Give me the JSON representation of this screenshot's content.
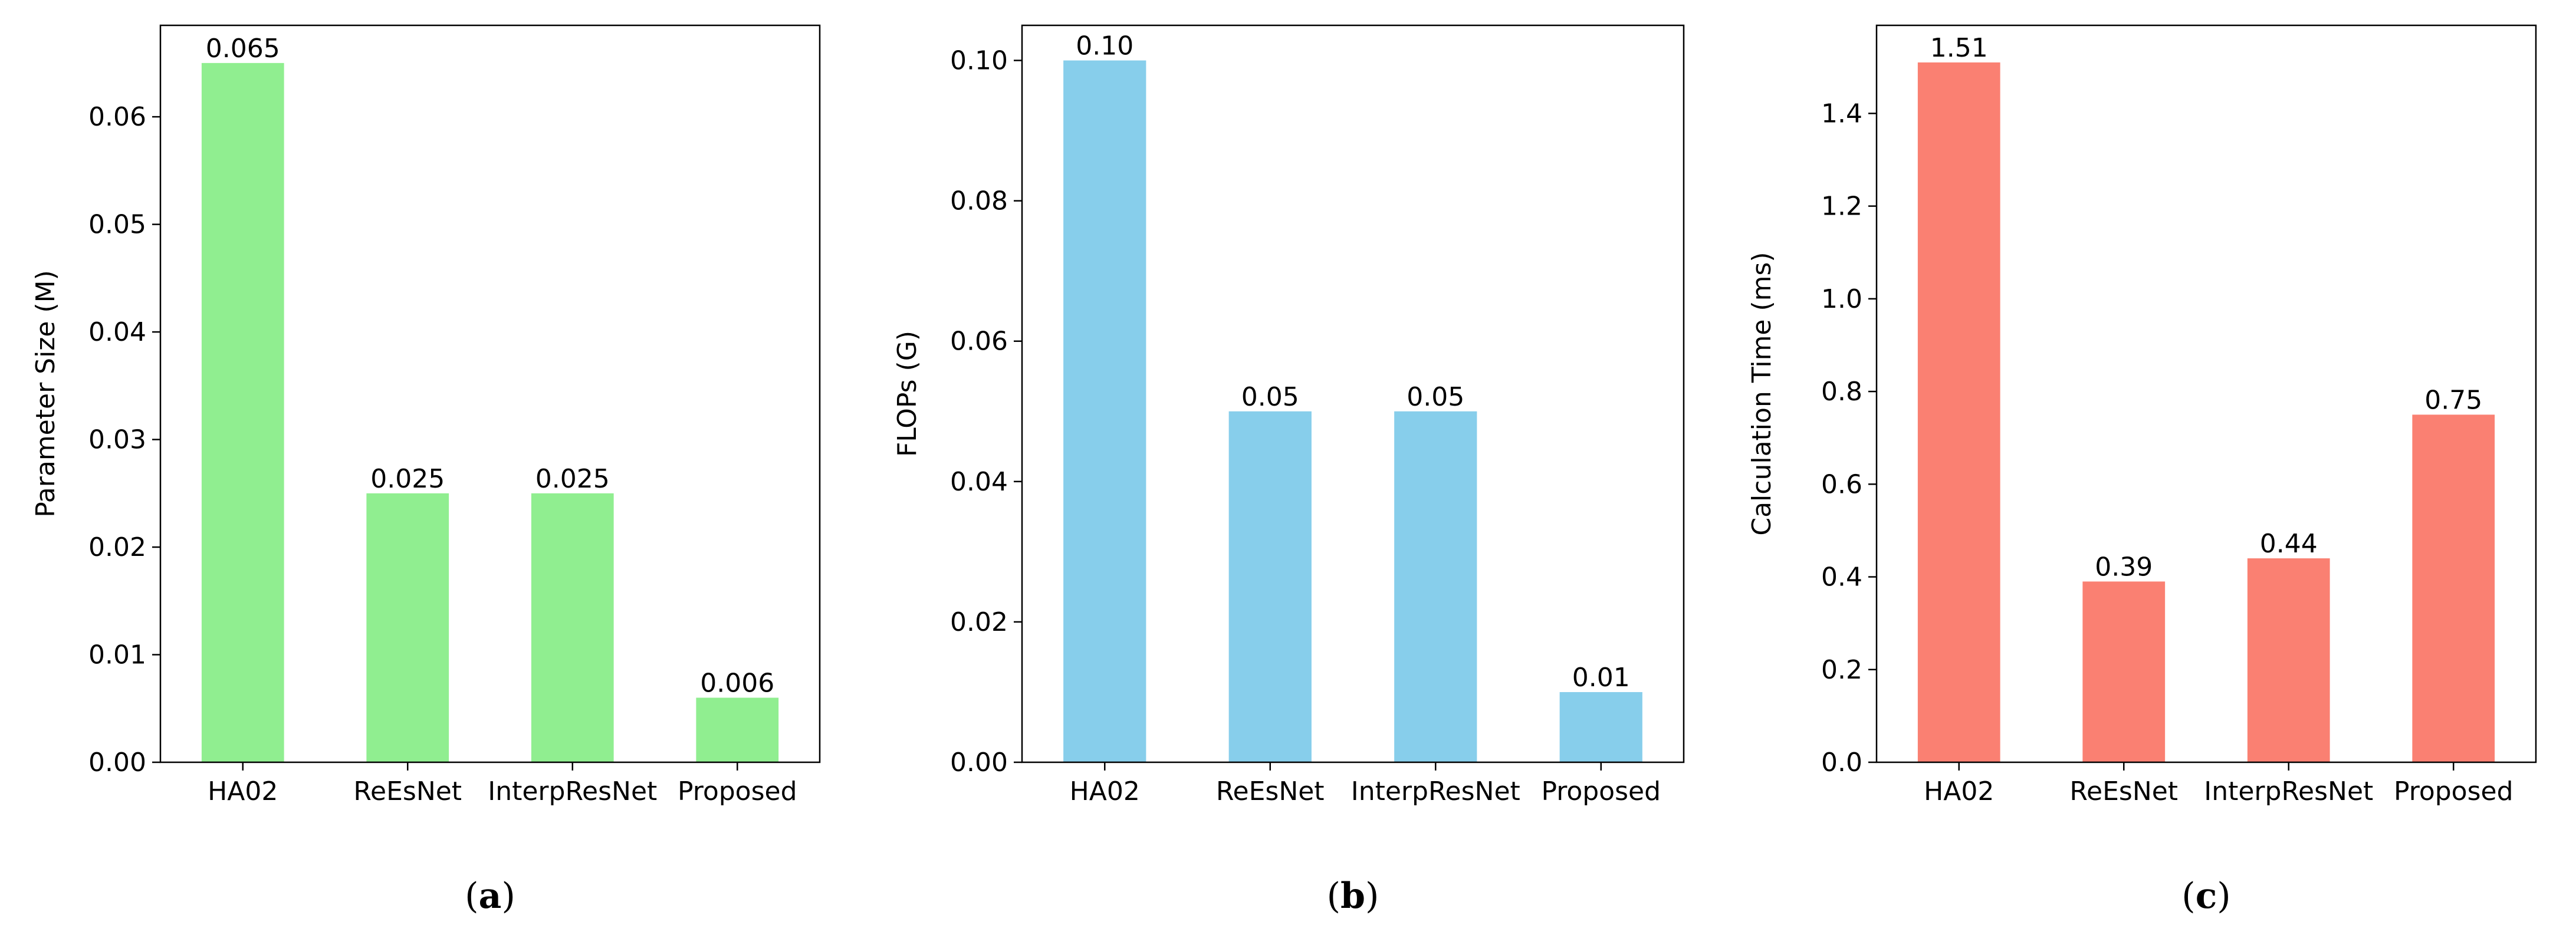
{
  "chart_data": [
    {
      "type": "bar",
      "panel_label": "a",
      "categories": [
        "HA02",
        "ReEsNet",
        "InterpResNet",
        "Proposed"
      ],
      "values": [
        0.065,
        0.025,
        0.025,
        0.006
      ],
      "value_labels": [
        "0.065",
        "0.025",
        "0.025",
        "0.006"
      ],
      "title": "",
      "xlabel": "",
      "ylabel": "Parameter Size (M)",
      "ylim": [
        0,
        0.0685
      ],
      "yticks": [
        0.0,
        0.01,
        0.02,
        0.03,
        0.04,
        0.05,
        0.06
      ],
      "ytick_labels": [
        "0.00",
        "0.01",
        "0.02",
        "0.03",
        "0.04",
        "0.05",
        "0.06"
      ],
      "color": "#90EE90",
      "grid": false,
      "legend": "none"
    },
    {
      "type": "bar",
      "panel_label": "b",
      "categories": [
        "HA02",
        "ReEsNet",
        "InterpResNet",
        "Proposed"
      ],
      "values": [
        0.1,
        0.05,
        0.05,
        0.01
      ],
      "value_labels": [
        "0.10",
        "0.05",
        "0.05",
        "0.01"
      ],
      "title": "",
      "xlabel": "",
      "ylabel": "FLOPs (G)",
      "ylim": [
        0,
        0.105
      ],
      "yticks": [
        0.0,
        0.02,
        0.04,
        0.06,
        0.08,
        0.1
      ],
      "ytick_labels": [
        "0.00",
        "0.02",
        "0.04",
        "0.06",
        "0.08",
        "0.10"
      ],
      "color": "#87CEEB",
      "grid": false,
      "legend": "none"
    },
    {
      "type": "bar",
      "panel_label": "c",
      "categories": [
        "HA02",
        "ReEsNet",
        "InterpResNet",
        "Proposed"
      ],
      "values": [
        1.51,
        0.39,
        0.44,
        0.75
      ],
      "value_labels": [
        "1.51",
        "0.39",
        "0.44",
        "0.75"
      ],
      "title": "",
      "xlabel": "",
      "ylabel": "Calculation Time (ms)",
      "ylim": [
        0,
        1.59
      ],
      "yticks": [
        0.0,
        0.2,
        0.4,
        0.6,
        0.8,
        1.0,
        1.2,
        1.4
      ],
      "ytick_labels": [
        "0.0",
        "0.2",
        "0.4",
        "0.6",
        "0.8",
        "1.0",
        "1.2",
        "1.4"
      ],
      "color": "#FA8072",
      "grid": false,
      "legend": "none"
    }
  ]
}
